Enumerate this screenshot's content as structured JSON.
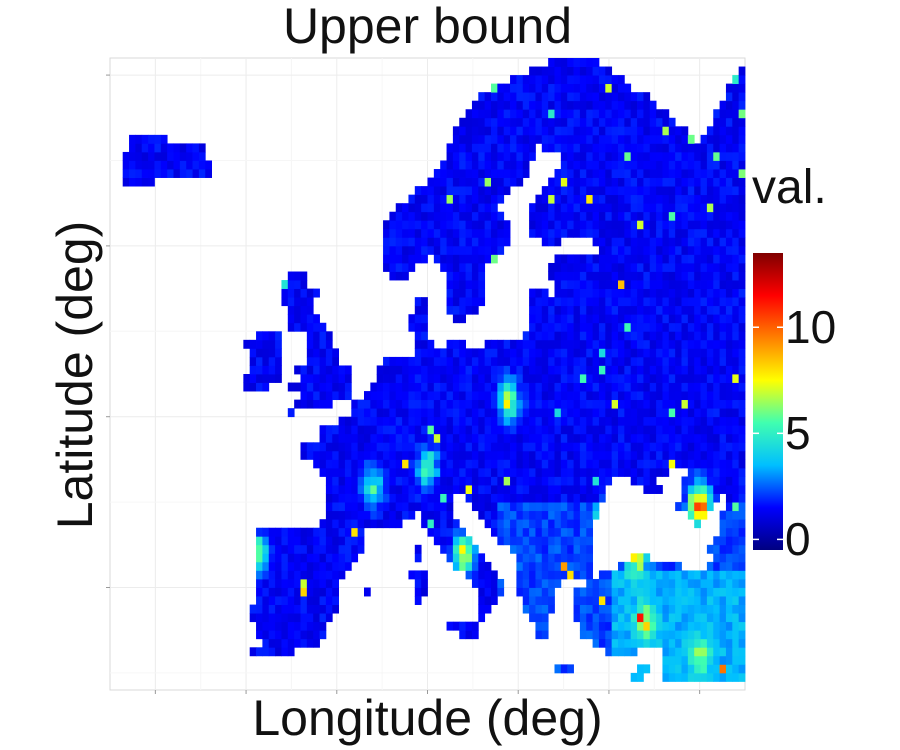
{
  "chart_data": {
    "type": "heatmap",
    "title": "Upper bound",
    "xlabel": "Longitude (deg)",
    "ylabel": "Latitude (deg)",
    "xlim": [
      -25,
      45
    ],
    "ylim": [
      34,
      71
    ],
    "grid": true,
    "legend": {
      "title": "val.",
      "position": "right",
      "range": [
        -0.5,
        13.5
      ],
      "ticks": [
        {
          "value": 0,
          "label": "0"
        },
        {
          "value": 5,
          "label": "5"
        },
        {
          "value": 10,
          "label": "10"
        }
      ],
      "colors": [
        "#000080",
        "#0000ff",
        "#00bfff",
        "#40ffb0",
        "#ffff00",
        "#ff8000",
        "#ff0000",
        "#800000"
      ]
    },
    "region": "Europe",
    "typical_value_range": [
      0,
      2
    ],
    "hotspots": [
      {
        "lon": 40,
        "lat": 45,
        "value": 13
      },
      {
        "lon": 30,
        "lat": 44,
        "value": 12
      },
      {
        "lon": 33,
        "lat": 42,
        "value": 10
      },
      {
        "lon": 14,
        "lat": 42,
        "value": 10
      },
      {
        "lon": 19,
        "lat": 51,
        "value": 9
      },
      {
        "lon": -9,
        "lat": 42,
        "value": 10
      },
      {
        "lon": 10,
        "lat": 47,
        "value": 7
      },
      {
        "lon": 34,
        "lat": 38,
        "value": 7
      },
      {
        "lon": 40,
        "lat": 36,
        "value": 6
      },
      {
        "lon": 4,
        "lat": 46,
        "value": 6
      }
    ]
  }
}
